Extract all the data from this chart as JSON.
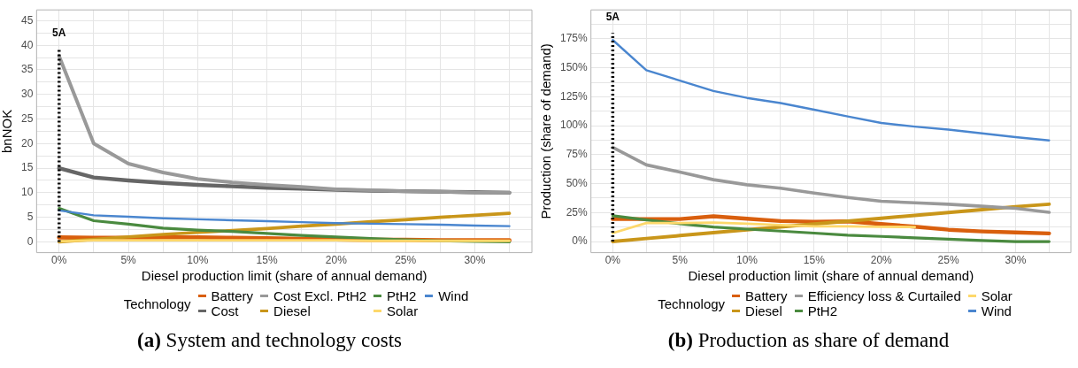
{
  "chart_data": [
    {
      "type": "line",
      "xlabel": "Diesel production limit (share of annual demand)",
      "ylabel": "bnNOK",
      "legend_title": "Technology",
      "legend": "bottom",
      "grid": true,
      "x": [
        0,
        2.5,
        5,
        7.5,
        10,
        12.5,
        15,
        17.5,
        20,
        22.5,
        25,
        27.5,
        30,
        32.5
      ],
      "xlim": [
        -1.625,
        34.125
      ],
      "xticks": [
        {
          "value": 0,
          "label": "0%"
        },
        {
          "value": 2.5,
          "label": null
        },
        {
          "value": 5,
          "label": "5%"
        },
        {
          "value": 7.5,
          "label": null
        },
        {
          "value": 10,
          "label": "10%"
        },
        {
          "value": 12.5,
          "label": null
        },
        {
          "value": 15,
          "label": "15%"
        },
        {
          "value": 17.5,
          "label": null
        },
        {
          "value": 20,
          "label": "20%"
        },
        {
          "value": 22.5,
          "label": null
        },
        {
          "value": 25,
          "label": "25%"
        },
        {
          "value": 27.5,
          "label": null
        },
        {
          "value": 30,
          "label": "30%"
        },
        {
          "value": 32.5,
          "label": null
        }
      ],
      "ylim": [
        -2.2,
        47.2
      ],
      "yticks": [
        0,
        {
          "value": 2.5,
          "label": null
        },
        5,
        {
          "value": 7.5,
          "label": null
        },
        10,
        {
          "value": 12.5,
          "label": null
        },
        15,
        {
          "value": 17.5,
          "label": null
        },
        20,
        {
          "value": 22.5,
          "label": null
        },
        25,
        {
          "value": 27.5,
          "label": null
        },
        30,
        {
          "value": 32.5,
          "label": null
        },
        35,
        {
          "value": 37.5,
          "label": null
        },
        40,
        {
          "value": 42.5,
          "label": null
        },
        45
      ],
      "ref_lines": [
        {
          "axis": "x",
          "value": 0,
          "label": "5A",
          "color": "#000000",
          "line_style": "dotted"
        }
      ],
      "annotations": [
        "(a) System and technology costs"
      ],
      "series": [
        {
          "name": "Battery",
          "color": "#d95f0e",
          "values": [
            0.9,
            0.8,
            0.8,
            0.9,
            0.9,
            0.8,
            0.7,
            0.6,
            0.5,
            0.4,
            0.4,
            0.3,
            0.3,
            0.3
          ]
        },
        {
          "name": "Cost",
          "color": "#666666",
          "values": [
            15,
            13.1,
            12.5,
            12.0,
            11.6,
            11.3,
            11.0,
            10.8,
            10.6,
            10.4,
            10.3,
            10.2,
            10.1,
            10.0
          ]
        },
        {
          "name": "Cost Excl. PtH2",
          "color": "#999999",
          "values": [
            37.8,
            20,
            15.9,
            14.1,
            12.8,
            12.1,
            11.6,
            11.2,
            10.7,
            10.5,
            10.3,
            10.2,
            10.0,
            10.0
          ]
        },
        {
          "name": "Diesel",
          "color": "#c9961a",
          "values": [
            0,
            0.5,
            1.0,
            1.5,
            1.9,
            2.3,
            2.7,
            3.2,
            3.6,
            4.1,
            4.5,
            5.0,
            5.4,
            5.8
          ]
        },
        {
          "name": "PtH2",
          "color": "#4a8a3f",
          "values": [
            6.8,
            4.3,
            3.6,
            2.8,
            2.4,
            2.1,
            1.7,
            1.3,
            1.0,
            0.7,
            0.4,
            0.2,
            0.1,
            0.0
          ]
        },
        {
          "name": "Solar",
          "color": "#fdd86b",
          "values": [
            0.1,
            0.3,
            0.3,
            0.3,
            0.3,
            0.3,
            0.3,
            0.3,
            0.3,
            0.2,
            0.2,
            0.2,
            0.2,
            0.2
          ]
        },
        {
          "name": "Wind",
          "color": "#4a86cf",
          "values": [
            6.4,
            5.4,
            5.1,
            4.8,
            4.6,
            4.4,
            4.2,
            4.0,
            3.8,
            3.7,
            3.6,
            3.5,
            3.3,
            3.2
          ]
        }
      ]
    },
    {
      "type": "line",
      "xlabel": "Diesel production limit (share of annual demand)",
      "ylabel": "Production (share of demand)",
      "legend_title": "Technology",
      "legend": "bottom",
      "grid": true,
      "x": [
        0,
        2.5,
        5,
        7.5,
        10,
        12.5,
        15,
        17.5,
        20,
        22.5,
        25,
        27.5,
        30,
        32.5
      ],
      "xlim": [
        -1.625,
        34.125
      ],
      "xticks": [
        {
          "value": 0,
          "label": "0%"
        },
        {
          "value": 2.5,
          "label": null
        },
        {
          "value": 5,
          "label": "5%"
        },
        {
          "value": 7.5,
          "label": null
        },
        {
          "value": 10,
          "label": "10%"
        },
        {
          "value": 12.5,
          "label": null
        },
        {
          "value": 15,
          "label": "15%"
        },
        {
          "value": 17.5,
          "label": null
        },
        {
          "value": 20,
          "label": "20%"
        },
        {
          "value": 22.5,
          "label": null
        },
        {
          "value": 25,
          "label": "25%"
        },
        {
          "value": 27.5,
          "label": null
        },
        {
          "value": 30,
          "label": "30%"
        },
        {
          "value": 32.5,
          "label": null
        }
      ],
      "ylim": [
        -9.6,
        200
      ],
      "yticks": [
        {
          "value": 0,
          "label": "0%"
        },
        {
          "value": 12.5,
          "label": null
        },
        {
          "value": 25,
          "label": "25%"
        },
        {
          "value": 37.5,
          "label": null
        },
        {
          "value": 50,
          "label": "50%"
        },
        {
          "value": 62.5,
          "label": null
        },
        {
          "value": 75,
          "label": "75%"
        },
        {
          "value": 87.5,
          "label": null
        },
        {
          "value": 100,
          "label": "100%"
        },
        {
          "value": 112.5,
          "label": null
        },
        {
          "value": 125,
          "label": "125%"
        },
        {
          "value": 137.5,
          "label": null
        },
        {
          "value": 150,
          "label": "150%"
        },
        {
          "value": 162.5,
          "label": null
        },
        {
          "value": 175,
          "label": "175%"
        },
        {
          "value": 187.5,
          "label": null
        }
      ],
      "ref_lines": [
        {
          "axis": "x",
          "value": 0,
          "label": "5A",
          "color": "#000000",
          "line_style": "dotted"
        }
      ],
      "annotations": [
        "(b) Production as share of demand"
      ],
      "series": [
        {
          "name": "Battery",
          "color": "#d95f0e",
          "values": [
            19.4,
            19.4,
            19.4,
            21.8,
            19.7,
            17.7,
            17.1,
            17.4,
            15.1,
            12.8,
            10.2,
            8.7,
            7.8,
            7.0
          ]
        },
        {
          "name": "Diesel",
          "color": "#c9961a",
          "values": [
            0,
            2.6,
            5.1,
            7.6,
            10.1,
            12.6,
            15.1,
            17.6,
            20.1,
            22.6,
            25.1,
            27.6,
            30.1,
            32.2
          ]
        },
        {
          "name": "Efficiency loss & Curtailed",
          "color": "#999999",
          "values": [
            81.3,
            66.2,
            60,
            53.4,
            49,
            46.1,
            41.8,
            38,
            34.8,
            33.4,
            32.2,
            30.5,
            28.7,
            25.2
          ]
        },
        {
          "name": "PtH2",
          "color": "#4a8a3f",
          "values": [
            22.3,
            18.6,
            15.4,
            12.5,
            10.7,
            9,
            7.3,
            5.5,
            4.4,
            3.2,
            2,
            0.9,
            0,
            0
          ]
        },
        {
          "name": "Solar",
          "color": "#fdd86b",
          "values": [
            7.3,
            16,
            16,
            16.3,
            15.4,
            14.2,
            13.1,
            13.1,
            12.8,
            12.5,
            null,
            null,
            null,
            null
          ]
        },
        {
          "name": "Wind",
          "color": "#4a86cf",
          "values": [
            174,
            148,
            139,
            130,
            124,
            119.6,
            113.8,
            108,
            102.4,
            99.2,
            96.6,
            93.4,
            90.2,
            87.3
          ]
        }
      ]
    }
  ]
}
